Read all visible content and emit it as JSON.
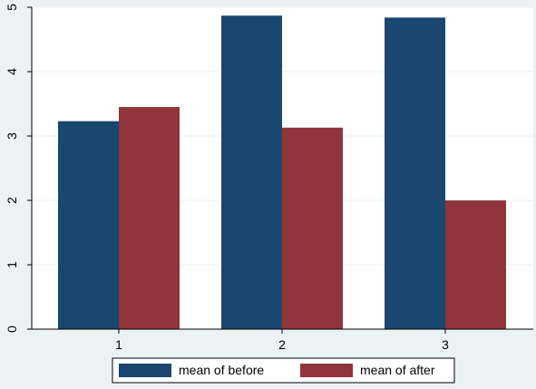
{
  "chart_data": {
    "type": "bar",
    "categories": [
      "1",
      "2",
      "3"
    ],
    "series": [
      {
        "name": "mean of before",
        "values": [
          3.23,
          4.87,
          4.84
        ],
        "color": "#1a476f"
      },
      {
        "name": "mean of after",
        "values": [
          3.45,
          3.13,
          2.0
        ],
        "color": "#90353b"
      }
    ],
    "y_ticks": [
      "0",
      "1",
      "2",
      "3",
      "4",
      "5"
    ],
    "ylim": [
      0,
      5
    ],
    "grid": true,
    "legend_position": "bottom",
    "colors": {
      "background": "#eaf2f3",
      "plot_background": "#ffffff"
    }
  }
}
